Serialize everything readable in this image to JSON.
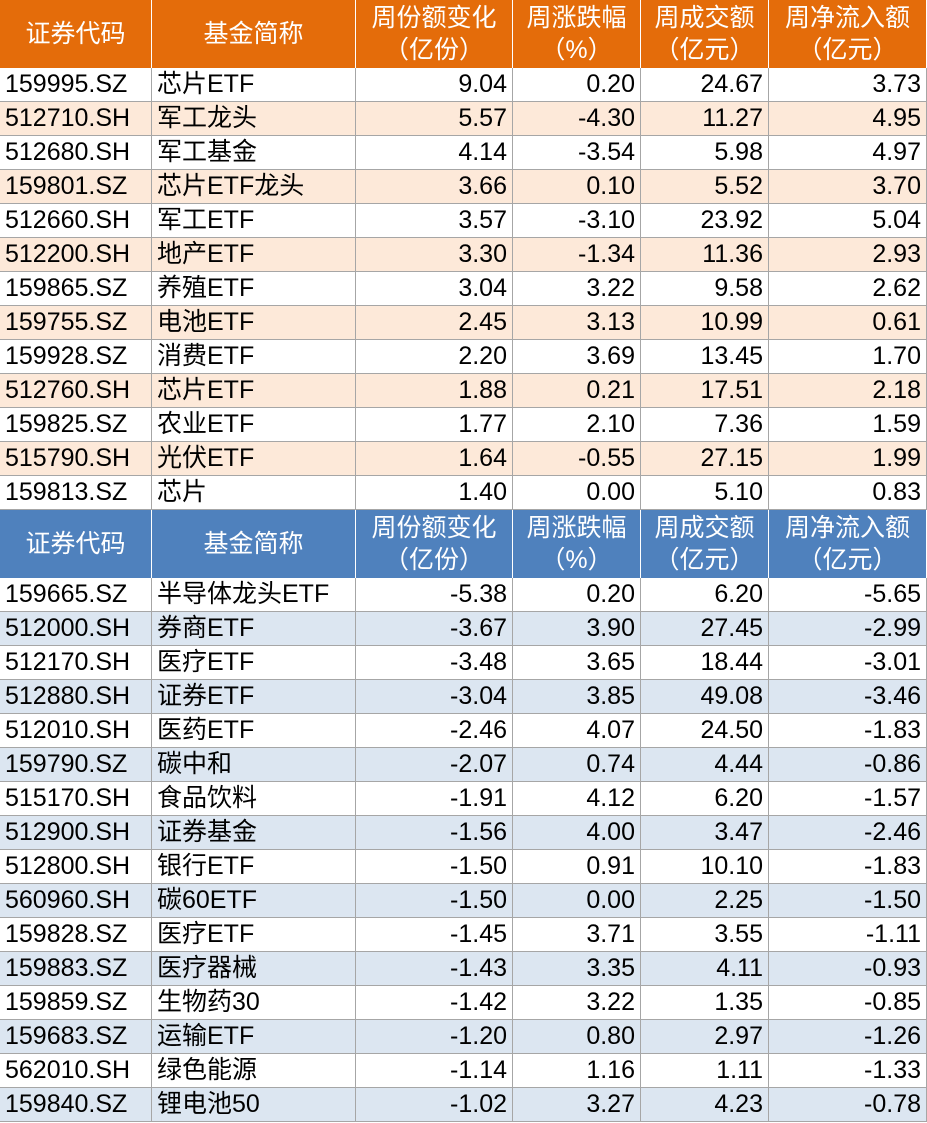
{
  "tables": [
    {
      "header": [
        [
          "证券代码"
        ],
        [
          "基金简称"
        ],
        [
          "周份额变化",
          "（亿份）"
        ],
        [
          "周涨跌幅",
          "（%）"
        ],
        [
          "周成交额",
          "（亿元）"
        ],
        [
          "周净流入额",
          "（亿元）"
        ]
      ],
      "rows": [
        [
          "159995.SZ",
          "芯片ETF",
          "9.04",
          "0.20",
          "24.67",
          "3.73"
        ],
        [
          "512710.SH",
          "军工龙头",
          "5.57",
          "-4.30",
          "11.27",
          "4.95"
        ],
        [
          "512680.SH",
          "军工基金",
          "4.14",
          "-3.54",
          "5.98",
          "4.97"
        ],
        [
          "159801.SZ",
          "芯片ETF龙头",
          "3.66",
          "0.10",
          "5.52",
          "3.70"
        ],
        [
          "512660.SH",
          "军工ETF",
          "3.57",
          "-3.10",
          "23.92",
          "5.04"
        ],
        [
          "512200.SH",
          "地产ETF",
          "3.30",
          "-1.34",
          "11.36",
          "2.93"
        ],
        [
          "159865.SZ",
          "养殖ETF",
          "3.04",
          "3.22",
          "9.58",
          "2.62"
        ],
        [
          "159755.SZ",
          "电池ETF",
          "2.45",
          "3.13",
          "10.99",
          "0.61"
        ],
        [
          "159928.SZ",
          "消费ETF",
          "2.20",
          "3.69",
          "13.45",
          "1.70"
        ],
        [
          "512760.SH",
          "芯片ETF",
          "1.88",
          "0.21",
          "17.51",
          "2.18"
        ],
        [
          "159825.SZ",
          "农业ETF",
          "1.77",
          "2.10",
          "7.36",
          "1.59"
        ],
        [
          "515790.SH",
          "光伏ETF",
          "1.64",
          "-0.55",
          "27.15",
          "1.99"
        ],
        [
          "159813.SZ",
          "芯片",
          "1.40",
          "0.00",
          "5.10",
          "0.83"
        ]
      ]
    },
    {
      "header": [
        [
          "证券代码"
        ],
        [
          "基金简称"
        ],
        [
          "周份额变化",
          "（亿份）"
        ],
        [
          "周涨跌幅",
          "（%）"
        ],
        [
          "周成交额",
          "（亿元）"
        ],
        [
          "周净流入额",
          "（亿元）"
        ]
      ],
      "rows": [
        [
          "159665.SZ",
          "半导体龙头ETF",
          "-5.38",
          "0.20",
          "6.20",
          "-5.65"
        ],
        [
          "512000.SH",
          "券商ETF",
          "-3.67",
          "3.90",
          "27.45",
          "-2.99"
        ],
        [
          "512170.SH",
          "医疗ETF",
          "-3.48",
          "3.65",
          "18.44",
          "-3.01"
        ],
        [
          "512880.SH",
          "证券ETF",
          "-3.04",
          "3.85",
          "49.08",
          "-3.46"
        ],
        [
          "512010.SH",
          "医药ETF",
          "-2.46",
          "4.07",
          "24.50",
          "-1.83"
        ],
        [
          "159790.SZ",
          "碳中和",
          "-2.07",
          "0.74",
          "4.44",
          "-0.86"
        ],
        [
          "515170.SH",
          "食品饮料",
          "-1.91",
          "4.12",
          "6.20",
          "-1.57"
        ],
        [
          "512900.SH",
          "证券基金",
          "-1.56",
          "4.00",
          "3.47",
          "-2.46"
        ],
        [
          "512800.SH",
          "银行ETF",
          "-1.50",
          "0.91",
          "10.10",
          "-1.83"
        ],
        [
          "560960.SH",
          "碳60ETF",
          "-1.50",
          "0.00",
          "2.25",
          "-1.50"
        ],
        [
          "159828.SZ",
          "医疗ETF",
          "-1.45",
          "3.71",
          "3.55",
          "-1.11"
        ],
        [
          "159883.SZ",
          "医疗器械",
          "-1.43",
          "3.35",
          "4.11",
          "-0.93"
        ],
        [
          "159859.SZ",
          "生物药30",
          "-1.42",
          "3.22",
          "1.35",
          "-0.85"
        ],
        [
          "159683.SZ",
          "运输ETF",
          "-1.20",
          "0.80",
          "2.97",
          "-1.26"
        ],
        [
          "562010.SH",
          "绿色能源",
          "-1.14",
          "1.16",
          "1.11",
          "-1.33"
        ],
        [
          "159840.SZ",
          "锂电池50",
          "-1.02",
          "3.27",
          "4.23",
          "-0.78"
        ]
      ]
    }
  ]
}
